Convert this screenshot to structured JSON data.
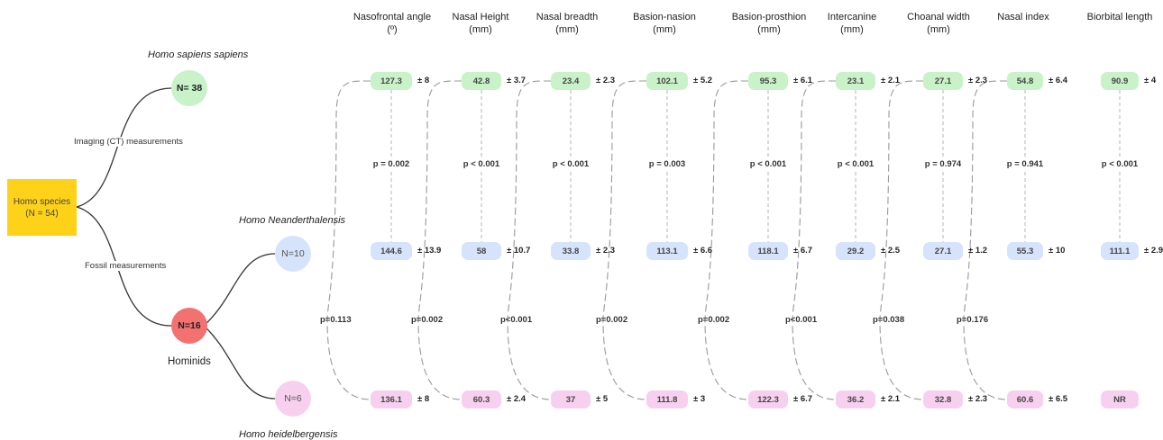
{
  "tree": {
    "root_label": "Homo species",
    "root_sub": "(N = 54)",
    "edge_top_label": "Imaging (CT) measurements",
    "edge_bottom_label": "Fossil measurements",
    "sapiens_title": "Homo sapiens sapiens",
    "sapiens_n": "N= 38",
    "hominids_n": "N=16",
    "hominids_label": "Hominids",
    "neander_title": "Homo Neanderthalensis",
    "neander_n": "N=10",
    "heidel_title": "Homo heidelbergensis",
    "heidel_n": "N=6"
  },
  "colors": {
    "sapiens": "#c9f2c9",
    "neander": "#d5e4fb",
    "heidel": "#f7d0ef",
    "hominids": "#f47171",
    "root": "#ffd21a"
  },
  "columns": [
    {
      "title": "Nasofrontal angle",
      "unit": "(º)",
      "sapiens": "127.3",
      "sapiens_sd": "± 8",
      "p_top": "p = 0.002",
      "neander": "144.6",
      "neander_sd": "± 13.9",
      "p_side": "p=0.113",
      "heidel": "136.1",
      "heidel_sd": "± 8"
    },
    {
      "title": "Nasal Height",
      "unit": "(mm)",
      "sapiens": "42.8",
      "sapiens_sd": "± 3.7",
      "p_top": "p < 0.001",
      "neander": "58",
      "neander_sd": "± 10.7",
      "p_side": "p=0.002",
      "heidel": "60.3",
      "heidel_sd": "± 2.4"
    },
    {
      "title": "Nasal breadth",
      "unit": "(mm)",
      "sapiens": "23.4",
      "sapiens_sd": "± 2.3",
      "p_top": "p < 0.001",
      "neander": "33.8",
      "neander_sd": "± 2.3",
      "p_side": "p<0.001",
      "heidel": "37",
      "heidel_sd": "± 5"
    },
    {
      "title": "Basion-nasion",
      "unit": "(mm)",
      "sapiens": "102.1",
      "sapiens_sd": "± 5.2",
      "p_top": "p = 0.003",
      "neander": "113.1",
      "neander_sd": "± 6.6",
      "p_side": "p=0.002",
      "heidel": "111.8",
      "heidel_sd": "± 3"
    },
    {
      "title": "Basion-prosthion",
      "unit": "(mm)",
      "sapiens": "95.3",
      "sapiens_sd": "± 6.1",
      "p_top": "p < 0.001",
      "neander": "118.1",
      "neander_sd": "± 6.7",
      "p_side": "p=0.002",
      "heidel": "122.3",
      "heidel_sd": "± 6.7"
    },
    {
      "title": "Intercanine",
      "unit": "(mm)",
      "sapiens": "23.1",
      "sapiens_sd": "± 2.1",
      "p_top": "p < 0.001",
      "neander": "29.2",
      "neander_sd": "± 2.5",
      "p_side": "p<0.001",
      "heidel": "36.2",
      "heidel_sd": "± 2.1"
    },
    {
      "title": "Choanal width",
      "unit": "(mm)",
      "sapiens": "27.1",
      "sapiens_sd": "± 2.3",
      "p_top": "p = 0.974",
      "neander": "27.1",
      "neander_sd": "± 1.2",
      "p_side": "p=0.038",
      "heidel": "32.8",
      "heidel_sd": "± 2.3"
    },
    {
      "title": "Nasal index",
      "unit": "",
      "sapiens": "54.8",
      "sapiens_sd": "± 6.4",
      "p_top": "p = 0.941",
      "neander": "55.3",
      "neander_sd": "± 10",
      "p_side": "p=0.176",
      "heidel": "60.6",
      "heidel_sd": "± 6.5"
    },
    {
      "title": "Biorbital length",
      "unit": "",
      "sapiens": "90.9",
      "sapiens_sd": "± 4",
      "p_top": "p < 0.001",
      "neander": "111.1",
      "neander_sd": "± 2.9",
      "p_side": "",
      "heidel": "NR",
      "heidel_sd": ""
    }
  ]
}
